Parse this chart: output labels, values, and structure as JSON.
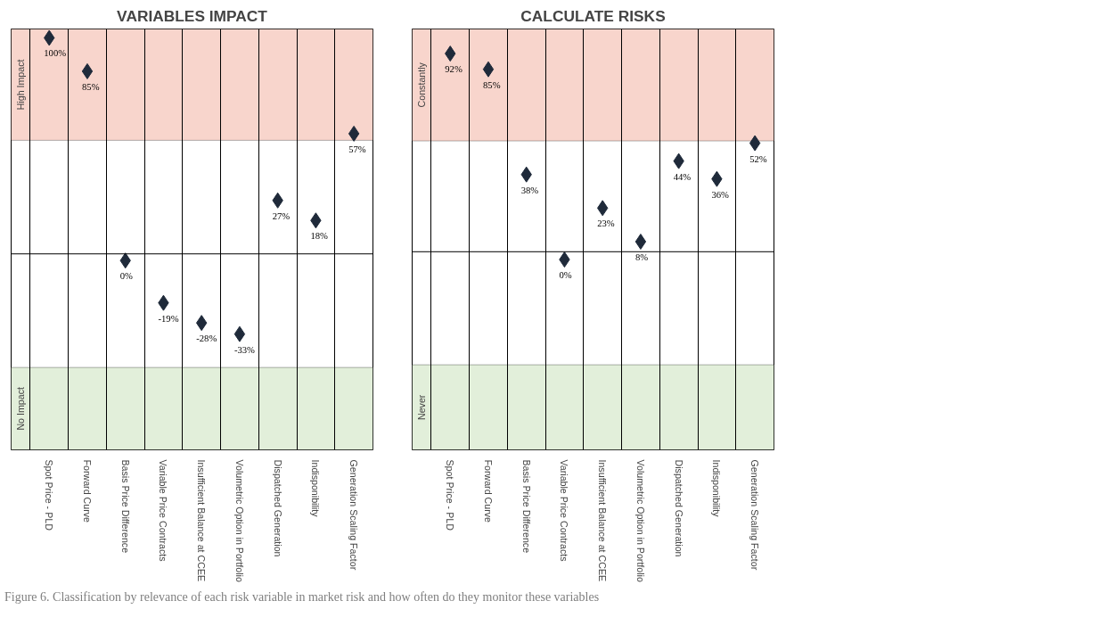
{
  "chart_data": [
    {
      "type": "scatter",
      "title": "VARIABLES IMPACT",
      "categories": [
        "Spot Price - PLD",
        "Forward Curve",
        "Basis Price Difference",
        "Variable Price Contracts",
        "Insufficient Balance at CCEE",
        "Volumetric Option in Portfolio",
        "Dispatched Generation",
        "Indisponibility",
        "Generation Scaling Factor"
      ],
      "values": [
        100,
        85,
        0,
        -19,
        -28,
        -33,
        27,
        18,
        57
      ],
      "value_labels": [
        "100%",
        "85%",
        "0%",
        "-19%",
        "-28%",
        "-33%",
        "27%",
        "18%",
        "57%"
      ],
      "color": "#1f2a3a",
      "marker": "diamond",
      "ylim": [
        -85,
        104
      ],
      "grid": "x",
      "tick_labels": "x",
      "bands": [
        {
          "axis": "y",
          "from": 54,
          "to": 104,
          "label": "High Impact",
          "color": "#f8d5cc"
        },
        {
          "axis": "y",
          "from": -85,
          "to": -48,
          "label": "No Impact",
          "color": "#e2efda"
        }
      ],
      "ref_lines": [
        {
          "axis": "y",
          "value": 3,
          "label": null
        }
      ],
      "annotations": [
        "Figure 6. Classification by relevance of each risk variable in market risk and how often do they monitor these variables"
      ]
    },
    {
      "type": "scatter",
      "title": "CALCULATE RISKS",
      "categories": [
        "Spot Price - PLD",
        "Forward Curve",
        "Basis Price Difference",
        "Variable Price Contracts",
        "Insufficient Balance at CCEE",
        "Volumetric Option in Portfolio",
        "Dispatched Generation",
        "Indisponibility",
        "Generation Scaling Factor"
      ],
      "values": [
        92,
        85,
        38,
        0,
        23,
        8,
        44,
        36,
        52
      ],
      "value_labels": [
        "92%",
        "85%",
        "38%",
        "0%",
        "23%",
        "8%",
        "44%",
        "36%",
        "52%"
      ],
      "color": "#1f2a3a",
      "marker": "diamond",
      "ylim": [
        -85,
        103
      ],
      "grid": "x",
      "tick_labels": "x",
      "bands": [
        {
          "axis": "y",
          "from": 53,
          "to": 103,
          "label": "Constantly",
          "color": "#f8d5cc"
        },
        {
          "axis": "y",
          "from": -85,
          "to": -47,
          "label": "Never",
          "color": "#e2efda"
        }
      ],
      "ref_lines": [
        {
          "axis": "y",
          "value": 3.5,
          "label": null
        }
      ]
    }
  ]
}
